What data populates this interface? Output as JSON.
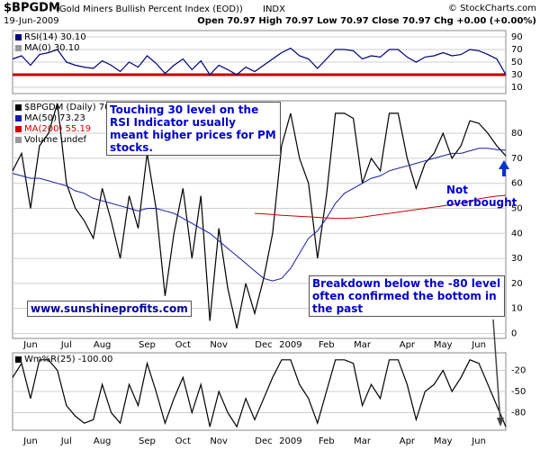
{
  "header": {
    "title": "$BPGDM",
    "subtitle": "(Gold Miners Bullish Percent Index (EOD))",
    "exchange": "INDX",
    "date": "19-Jun-2009",
    "quote": "Open 70.97 High 70.97 Low 70.97 Close 70.97 Chg +0.00 (+0.00%)",
    "credit": "© StockCharts.com"
  },
  "chart_data": [
    {
      "type": "line",
      "title": "RSI(14) 30.10",
      "legend_extra": "MA(0) 30.10",
      "series": [
        {
          "name": "RSI(14) 30.10",
          "color": "#00007a",
          "values": [
            55,
            60,
            45,
            62,
            65,
            70,
            50,
            45,
            42,
            40,
            52,
            45,
            35,
            50,
            42,
            60,
            48,
            32,
            45,
            55,
            38,
            52,
            30,
            45,
            38,
            30,
            42,
            35,
            45,
            55,
            65,
            72,
            60,
            55,
            40,
            55,
            70,
            70,
            68,
            55,
            60,
            58,
            70,
            70,
            58,
            50,
            58,
            60,
            65,
            60,
            62,
            70,
            68,
            62,
            55,
            30.1
          ]
        }
      ],
      "ylim": [
        0,
        100
      ],
      "yticks": [
        10,
        30,
        50,
        70,
        90
      ],
      "grid": true,
      "reference_line": 30,
      "reference_color": "#c00000"
    },
    {
      "type": "line",
      "categories": [
        null,
        null,
        "Jun",
        null,
        null,
        null,
        "Jul",
        null,
        null,
        null,
        "Aug",
        null,
        null,
        null,
        null,
        "Sep",
        null,
        null,
        null,
        "Oct",
        null,
        null,
        null,
        "Nov",
        null,
        null,
        null,
        null,
        "Dec",
        null,
        null,
        "2009",
        null,
        null,
        null,
        "Feb",
        null,
        null,
        null,
        "Mar",
        null,
        null,
        null,
        null,
        "Apr",
        null,
        null,
        null,
        "May",
        null,
        null,
        null,
        "Jun",
        null,
        null,
        null
      ],
      "series": [
        {
          "name": "$BPGDM (Daily) 70.97",
          "color": "#000000",
          "values": [
            65,
            72,
            50,
            75,
            80,
            92,
            60,
            50,
            45,
            38,
            58,
            45,
            30,
            55,
            42,
            72,
            50,
            15,
            40,
            58,
            30,
            55,
            5,
            42,
            18,
            2,
            20,
            8,
            22,
            40,
            75,
            88,
            70,
            60,
            30,
            55,
            88,
            88,
            86,
            60,
            70,
            65,
            88,
            88,
            70,
            58,
            68,
            72,
            80,
            70,
            75,
            85,
            84,
            80,
            75,
            70.97
          ]
        },
        {
          "name": "MA(50) 73.23",
          "color": "#1a1aa8",
          "values": [
            64,
            63,
            62,
            62,
            61,
            60,
            59,
            57,
            56,
            54,
            53,
            52,
            51,
            50,
            49,
            50,
            50,
            49,
            48,
            46,
            44,
            42,
            40,
            37,
            34,
            31,
            28,
            25,
            22,
            21,
            22,
            26,
            32,
            38,
            41,
            46,
            52,
            56,
            58,
            60,
            62,
            63,
            65,
            66,
            67,
            68,
            69,
            70,
            71,
            72,
            72,
            73,
            74,
            74,
            73.5,
            73.23
          ]
        },
        {
          "name": "MA(200) 55.19",
          "color": "#d00000",
          "values": [
            null,
            null,
            null,
            null,
            null,
            null,
            null,
            null,
            null,
            null,
            null,
            null,
            null,
            null,
            null,
            null,
            null,
            null,
            null,
            null,
            null,
            null,
            null,
            null,
            null,
            null,
            null,
            48,
            47.8,
            47.5,
            47.2,
            47,
            46.8,
            46.6,
            46.4,
            46.2,
            46,
            46,
            46.2,
            46.5,
            47,
            47.5,
            48,
            48.5,
            49,
            49.5,
            50,
            50.5,
            51,
            51.5,
            52,
            53,
            53.8,
            54.4,
            54.9,
            55.19
          ]
        }
      ],
      "legend_extra": "Volume undef",
      "ylim": [
        -2,
        93
      ],
      "yticks": [
        0,
        10,
        20,
        30,
        40,
        50,
        60,
        70,
        80
      ],
      "grid": true,
      "annotations": [
        "Touching 30 level on the RSI Indicator usually meant higher prices for PM stocks.",
        "Not overbought",
        "Breakdown below the -80 level often confirmed the bottom in the past",
        "www.sunshineprofits.com"
      ]
    },
    {
      "type": "line",
      "title": "Wm%R(25) -100.00",
      "categories": [
        null,
        null,
        "Jun",
        null,
        null,
        null,
        "Jul",
        null,
        null,
        null,
        "Aug",
        null,
        null,
        null,
        null,
        "Sep",
        null,
        null,
        null,
        "Oct",
        null,
        null,
        null,
        "Nov",
        null,
        null,
        null,
        null,
        "Dec",
        null,
        null,
        "2009",
        null,
        null,
        null,
        "Feb",
        null,
        null,
        null,
        "Mar",
        null,
        null,
        null,
        null,
        "Apr",
        null,
        null,
        null,
        "May",
        null,
        null,
        null,
        "Jun",
        null,
        null,
        null
      ],
      "series": [
        {
          "name": "Wm%R(25) -100.00",
          "color": "#000000",
          "values": [
            -30,
            -10,
            -60,
            -5,
            -5,
            -20,
            -70,
            -85,
            -95,
            -90,
            -40,
            -80,
            -95,
            -40,
            -70,
            -10,
            -50,
            -95,
            -60,
            -30,
            -80,
            -40,
            -100,
            -50,
            -80,
            -100,
            -60,
            -90,
            -60,
            -30,
            -5,
            -5,
            -40,
            -60,
            -95,
            -50,
            -5,
            -5,
            -10,
            -70,
            -40,
            -60,
            -5,
            -5,
            -40,
            -90,
            -50,
            -40,
            -20,
            -50,
            -30,
            -5,
            -10,
            -40,
            -70,
            -100
          ]
        }
      ],
      "ylim": [
        -105,
        5
      ],
      "yticks": [
        -20,
        -50,
        -80
      ],
      "grid": true
    }
  ]
}
